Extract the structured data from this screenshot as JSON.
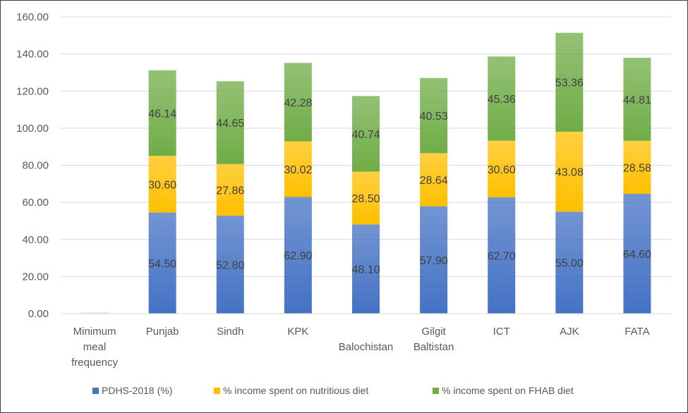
{
  "chart_data": {
    "type": "bar",
    "stacked": true,
    "categories": [
      "Minimum meal frequency",
      "Punjab",
      "Sindh",
      "KPK",
      "Balochistan",
      "Gilgit Baltistan",
      "ICT",
      "AJK",
      "FATA"
    ],
    "series": [
      {
        "name": "PDHS-2018 (%)",
        "color": "#4472c4",
        "values": [
          0,
          54.5,
          52.8,
          62.9,
          48.1,
          57.9,
          62.7,
          55.0,
          64.6
        ],
        "labels": [
          "",
          "54.50",
          "52.80",
          "62.90",
          "48.10",
          "57.90",
          "62.70",
          "55.00",
          "64.60"
        ]
      },
      {
        "name": "% income spent on nutritious diet",
        "color": "#ffc000",
        "values": [
          0,
          30.6,
          27.86,
          30.02,
          28.5,
          28.64,
          30.6,
          43.08,
          28.58
        ],
        "labels": [
          "",
          "30.60",
          "27.86",
          "30.02",
          "28.50",
          "28.64",
          "30.60",
          "43.08",
          "28.58"
        ]
      },
      {
        "name": "% income spent on FHAB diet",
        "color": "#70ad47",
        "values": [
          0,
          46.14,
          44.65,
          42.28,
          40.74,
          40.53,
          45.36,
          53.36,
          44.81
        ],
        "labels": [
          "",
          "46.14",
          "44.65",
          "42.28",
          "40.74",
          "40.53",
          "45.36",
          "53.36",
          "44.81"
        ]
      }
    ],
    "yticks": [
      "0.00",
      "20.00",
      "40.00",
      "60.00",
      "80.00",
      "100.00",
      "120.00",
      "140.00",
      "160.00"
    ],
    "ylim": [
      0,
      160
    ],
    "grid": true,
    "legend": "bottom",
    "title": "",
    "xlabel": "",
    "ylabel": ""
  }
}
